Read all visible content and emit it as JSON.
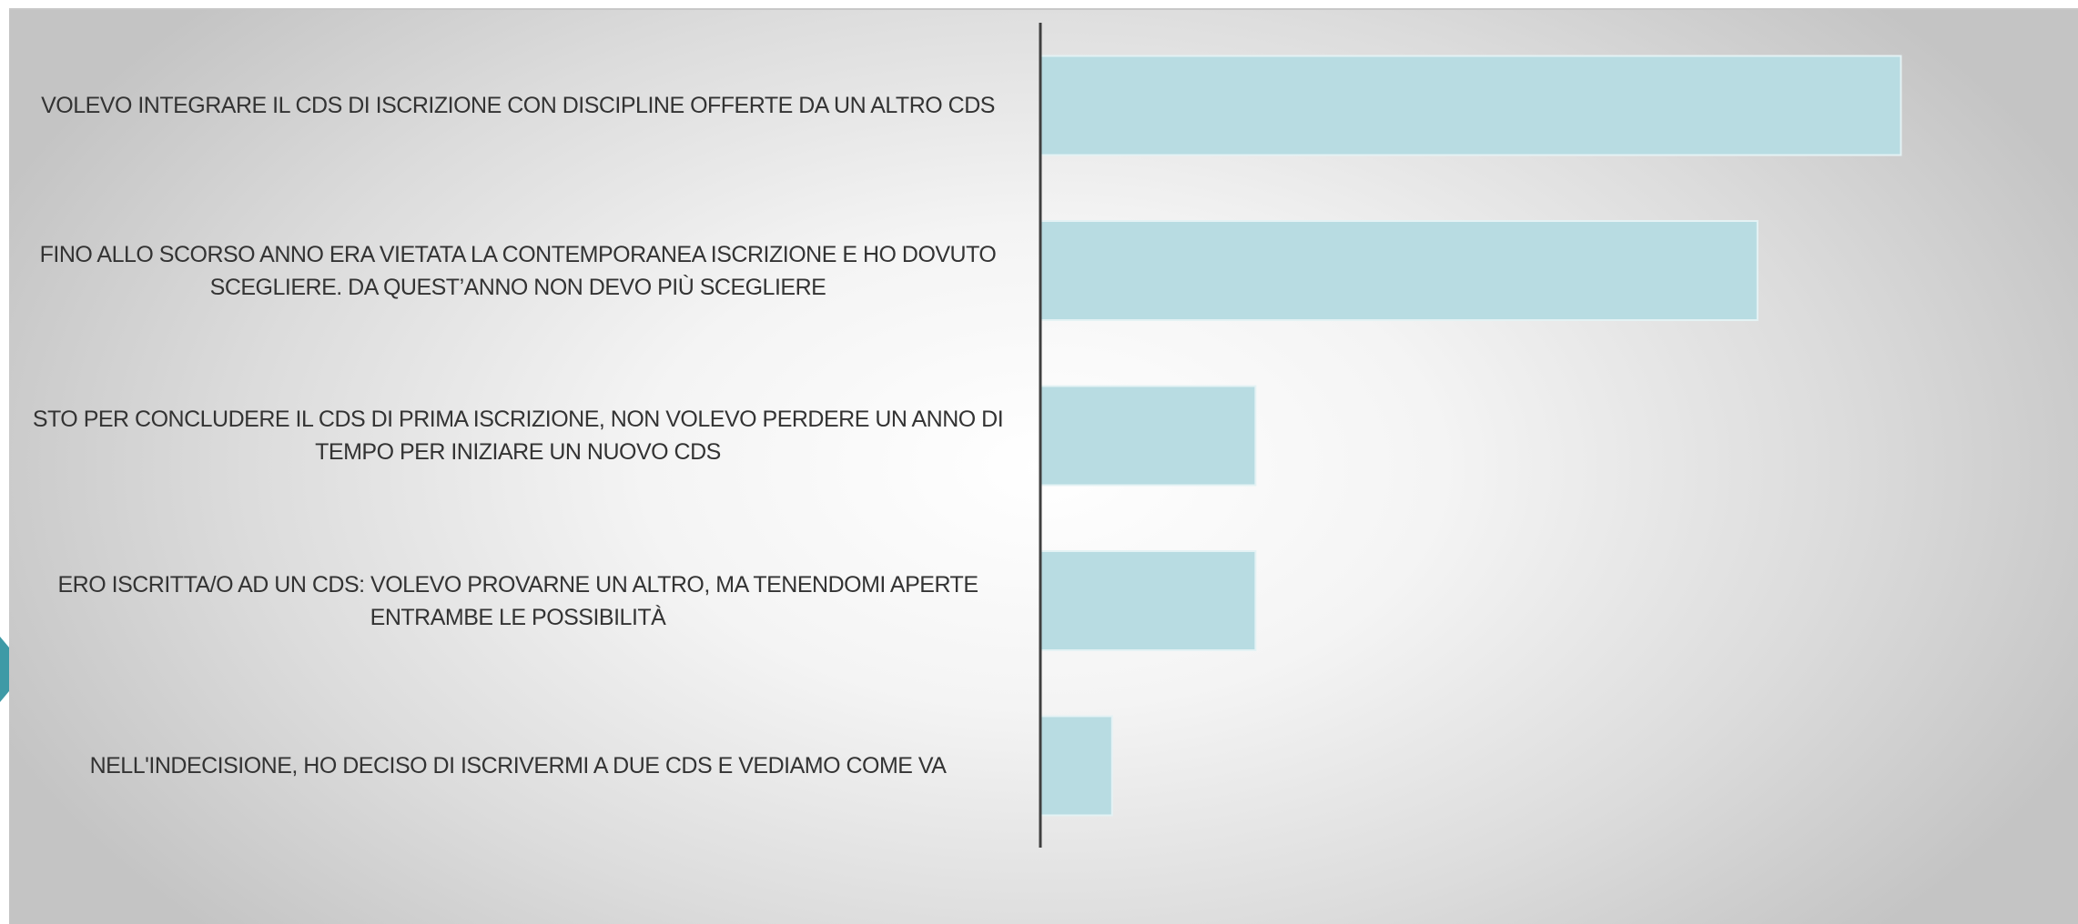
{
  "chart_data": {
    "type": "bar",
    "orientation": "horizontal",
    "categories": [
      "VOLEVO INTEGRARE IL CDS DI ISCRIZIONE CON DISCIPLINE OFFERTE DA UN ALTRO CDS",
      "FINO ALLO SCORSO ANNO ERA VIETATA LA CONTEMPORANEA ISCRIZIONE E HO DOVUTO SCEGLIERE. DA QUEST’ANNO NON DEVO PIÙ SCEGLIERE",
      "STO PER CONCLUDERE IL CDS DI PRIMA ISCRIZIONE, NON VOLEVO PERDERE UN ANNO DI TEMPO PER INIZIARE UN NUOVO CDS",
      "ERO ISCRITTA/O AD UN CDS: VOLEVO PROVARNE UN ALTRO, MA TENENDOMI APERTE ENTRAMBE LE POSSIBILITÀ",
      "NELL'INDECISIONE, HO DECISO DI ISCRIVERMI A DUE CDS E VEDIAMO COME VA"
    ],
    "values": [
      12,
      10,
      3,
      3,
      1
    ],
    "color": "#b8dce2",
    "xlim": [
      0,
      14
    ]
  }
}
